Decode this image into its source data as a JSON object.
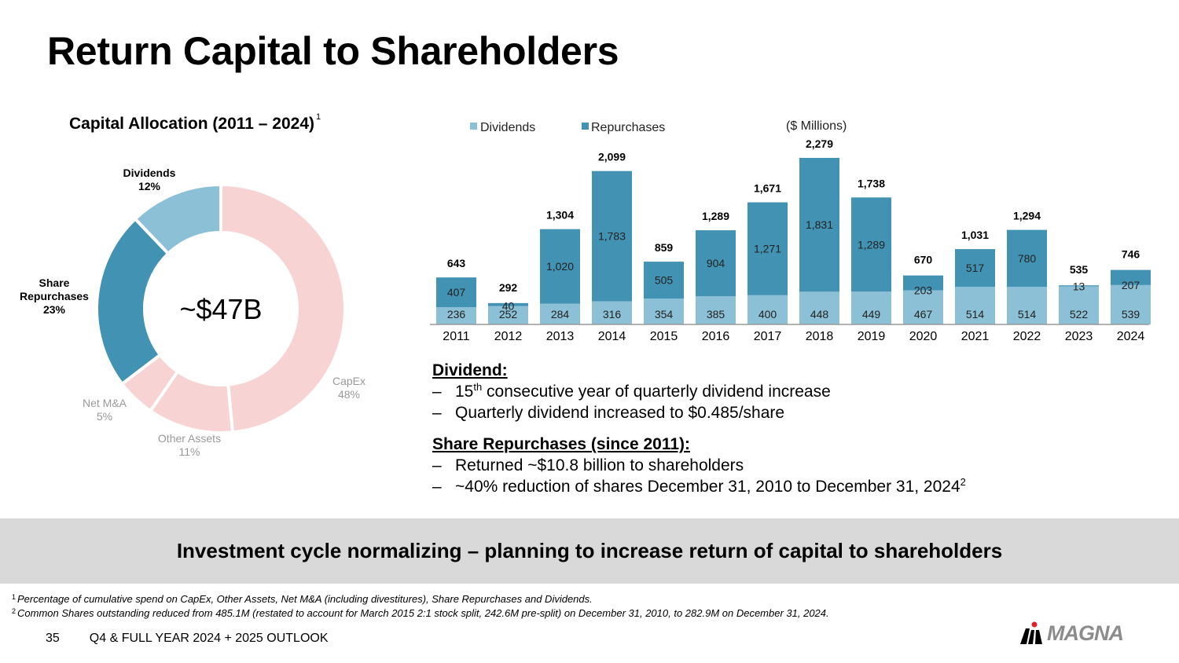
{
  "page": {
    "title": "Return Capital to Shareholders",
    "subtitle": "Capital Allocation (2011 – 2024)",
    "subtitle_footnote": "1",
    "banner": "Investment cycle normalizing – planning to increase return of capital to shareholders",
    "footnotes": [
      {
        "num": "1",
        "text": "Percentage of cumulative spend on CapEx, Other Assets, Net M&A (including divestitures), Share Repurchases and Dividends."
      },
      {
        "num": "2",
        "text": "Common Shares outstanding reduced from 485.1M (restated to account for March 2015 2:1 stock split, 242.6M pre-split) on December 31, 2010, to 282.9M on December 31, 2024."
      }
    ],
    "footer": {
      "page_number": "35",
      "deck_title": "Q4 & FULL YEAR 2024 + 2025 OUTLOOK"
    },
    "logo": {
      "icon": "magna-logo-icon",
      "text": "MAGNA"
    }
  },
  "bullets": {
    "dividend": {
      "heading": "Dividend:",
      "items": [
        {
          "dash": "–",
          "pre": "15",
          "sup": "th",
          "post": " consecutive year of quarterly dividend increase"
        },
        {
          "dash": "–",
          "pre": "Quarterly dividend increased to $0.485/share",
          "sup": "",
          "post": ""
        }
      ]
    },
    "repurchases": {
      "heading": "Share Repurchases (since 2011):",
      "items": [
        {
          "dash": "–",
          "pre": "Returned ~$10.8 billion to shareholders",
          "sup": "",
          "post": ""
        },
        {
          "dash": "–",
          "pre": "~40% reduction of shares December 31, 2010 to December 31, 2024",
          "sup": "2",
          "post": ""
        }
      ]
    }
  },
  "chart_data": [
    {
      "type": "pie",
      "variant": "donut",
      "title": "Capital Allocation (2011 – 2024)",
      "center_label": "~$47B",
      "slices": [
        {
          "label": "CapEx",
          "value": 48,
          "display": "48%",
          "color": "#f8d3d3",
          "label_color": "#999999",
          "bold": false
        },
        {
          "label": "Other Assets",
          "value": 11,
          "display": "11%",
          "color": "#f8d3d3",
          "label_color": "#999999",
          "bold": false
        },
        {
          "label": "Net M&A",
          "value": 5,
          "display": "5%",
          "color": "#f8d3d3",
          "label_color": "#999999",
          "bold": false
        },
        {
          "label": "Share Repurchases",
          "value": 23,
          "display": "23%",
          "color": "#4292b4",
          "label_color": "#000000",
          "bold": true
        },
        {
          "label": "Dividends",
          "value": 12,
          "display": "12%",
          "color": "#8bc0d6",
          "label_color": "#000000",
          "bold": true
        }
      ]
    },
    {
      "type": "bar",
      "stacked": true,
      "unit_note": "($ Millions)",
      "categories": [
        "2011",
        "2012",
        "2013",
        "2014",
        "2015",
        "2016",
        "2017",
        "2018",
        "2019",
        "2020",
        "2021",
        "2022",
        "2023",
        "2024"
      ],
      "series": [
        {
          "name": "Dividends",
          "color": "#8bc0d6",
          "values": [
            236,
            252,
            284,
            316,
            354,
            385,
            400,
            448,
            449,
            467,
            514,
            514,
            522,
            539
          ]
        },
        {
          "name": "Repurchases",
          "color": "#4292b4",
          "values": [
            407,
            40,
            1020,
            1783,
            505,
            904,
            1271,
            1831,
            1289,
            203,
            517,
            780,
            13,
            207
          ]
        }
      ],
      "totals": [
        "643",
        "292",
        "1,304",
        "2,099",
        "859",
        "1,289",
        "1,671",
        "2,279",
        "1,738",
        "670",
        "1,031",
        "1,294",
        "535",
        "746"
      ],
      "segment_labels": {
        "Dividends": [
          "236",
          "252",
          "284",
          "316",
          "354",
          "385",
          "400",
          "448",
          "449",
          "467",
          "514",
          "514",
          "522",
          "539"
        ],
        "Repurchases": [
          "407",
          "40",
          "1,020",
          "1,783",
          "505",
          "904",
          "1,271",
          "1,831",
          "1,289",
          "203",
          "517",
          "780",
          "13",
          "207"
        ]
      },
      "legend": "top-left",
      "ylim": [
        0,
        2450
      ],
      "grid": false,
      "xlabel": "",
      "ylabel": ""
    }
  ]
}
